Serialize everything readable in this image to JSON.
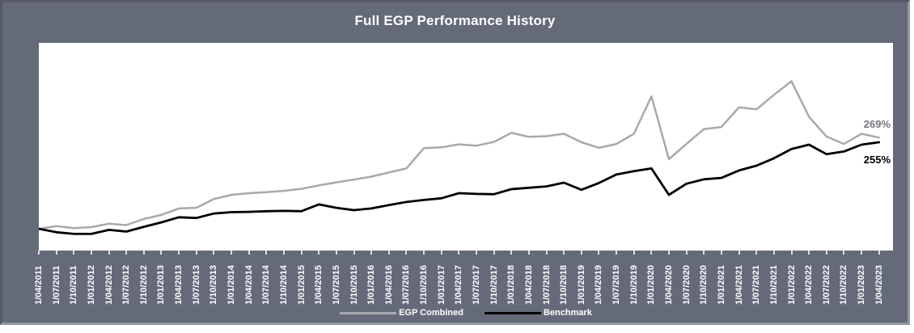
{
  "window": {
    "title": "Full EGP Performance History"
  },
  "colors": {
    "panel_background": "#656A79",
    "panel_border_dark": "#565A68",
    "panel_border_light": "#9296A2",
    "plot_background": "#ffffff",
    "title_text": "#ffffff",
    "axis_label_text": "#ffffff",
    "tick_mark": "#D6DEE9",
    "egp_line": "#A6A9AF",
    "benchmark_line": "#000000",
    "egp_end_label_text": "#74777D",
    "benchmark_end_label_text": "#000000"
  },
  "chart_data": {
    "type": "line",
    "title": "Full EGP Performance History",
    "xlabel": "",
    "ylabel": "",
    "unit": "%",
    "grid": false,
    "legend_position": "bottom",
    "ylim": [
      -64,
      548
    ],
    "x_labels": [
      "1/04/2011",
      "1/07/2011",
      "1/10/2011",
      "1/01/2012",
      "1/04/2012",
      "1/07/2012",
      "1/10/2012",
      "1/01/2013",
      "1/04/2013",
      "1/07/2013",
      "1/10/2013",
      "1/01/2014",
      "1/04/2014",
      "1/07/2014",
      "1/10/2014",
      "1/01/2015",
      "1/04/2015",
      "1/07/2015",
      "1/10/2015",
      "1/01/2016",
      "1/04/2016",
      "1/07/2016",
      "1/10/2016",
      "1/01/2017",
      "1/04/2017",
      "1/07/2017",
      "1/10/2017",
      "1/01/2018",
      "1/04/2018",
      "1/07/2018",
      "1/10/2018",
      "1/01/2019",
      "1/04/2019",
      "1/07/2019",
      "1/10/2019",
      "1/01/2020",
      "1/04/2020",
      "1/07/2020",
      "1/10/2020",
      "1/01/2021",
      "1/04/2021",
      "1/07/2021",
      "1/10/2021",
      "1/01/2022",
      "1/04/2022",
      "1/07/2022",
      "1/10/2022",
      "1/01/2023",
      "1/04/2023"
    ],
    "series": [
      {
        "name": "EGP Combined",
        "color": "#A6A9AF",
        "end_label": "269%",
        "values": [
          0,
          8,
          2,
          5,
          15,
          11,
          29,
          41,
          60,
          62,
          88,
          100,
          105,
          108,
          112,
          118,
          128,
          137,
          145,
          154,
          166,
          178,
          238,
          240,
          249,
          245,
          256,
          283,
          271,
          273,
          280,
          255,
          239,
          250,
          280,
          390,
          205,
          250,
          294,
          300,
          358,
          352,
          395,
          435,
          330,
          272,
          250,
          280,
          269
        ]
      },
      {
        "name": "Benchmark",
        "color": "#000000",
        "end_label": "255%",
        "values": [
          0,
          -10,
          -15,
          -15,
          -3,
          -8,
          6,
          19,
          34,
          32,
          45,
          49,
          50,
          52,
          53,
          52,
          72,
          62,
          55,
          60,
          70,
          79,
          85,
          90,
          105,
          103,
          102,
          117,
          121,
          125,
          136,
          115,
          135,
          160,
          170,
          178,
          100,
          133,
          146,
          150,
          172,
          186,
          208,
          235,
          248,
          220,
          228,
          248,
          255
        ]
      }
    ]
  }
}
